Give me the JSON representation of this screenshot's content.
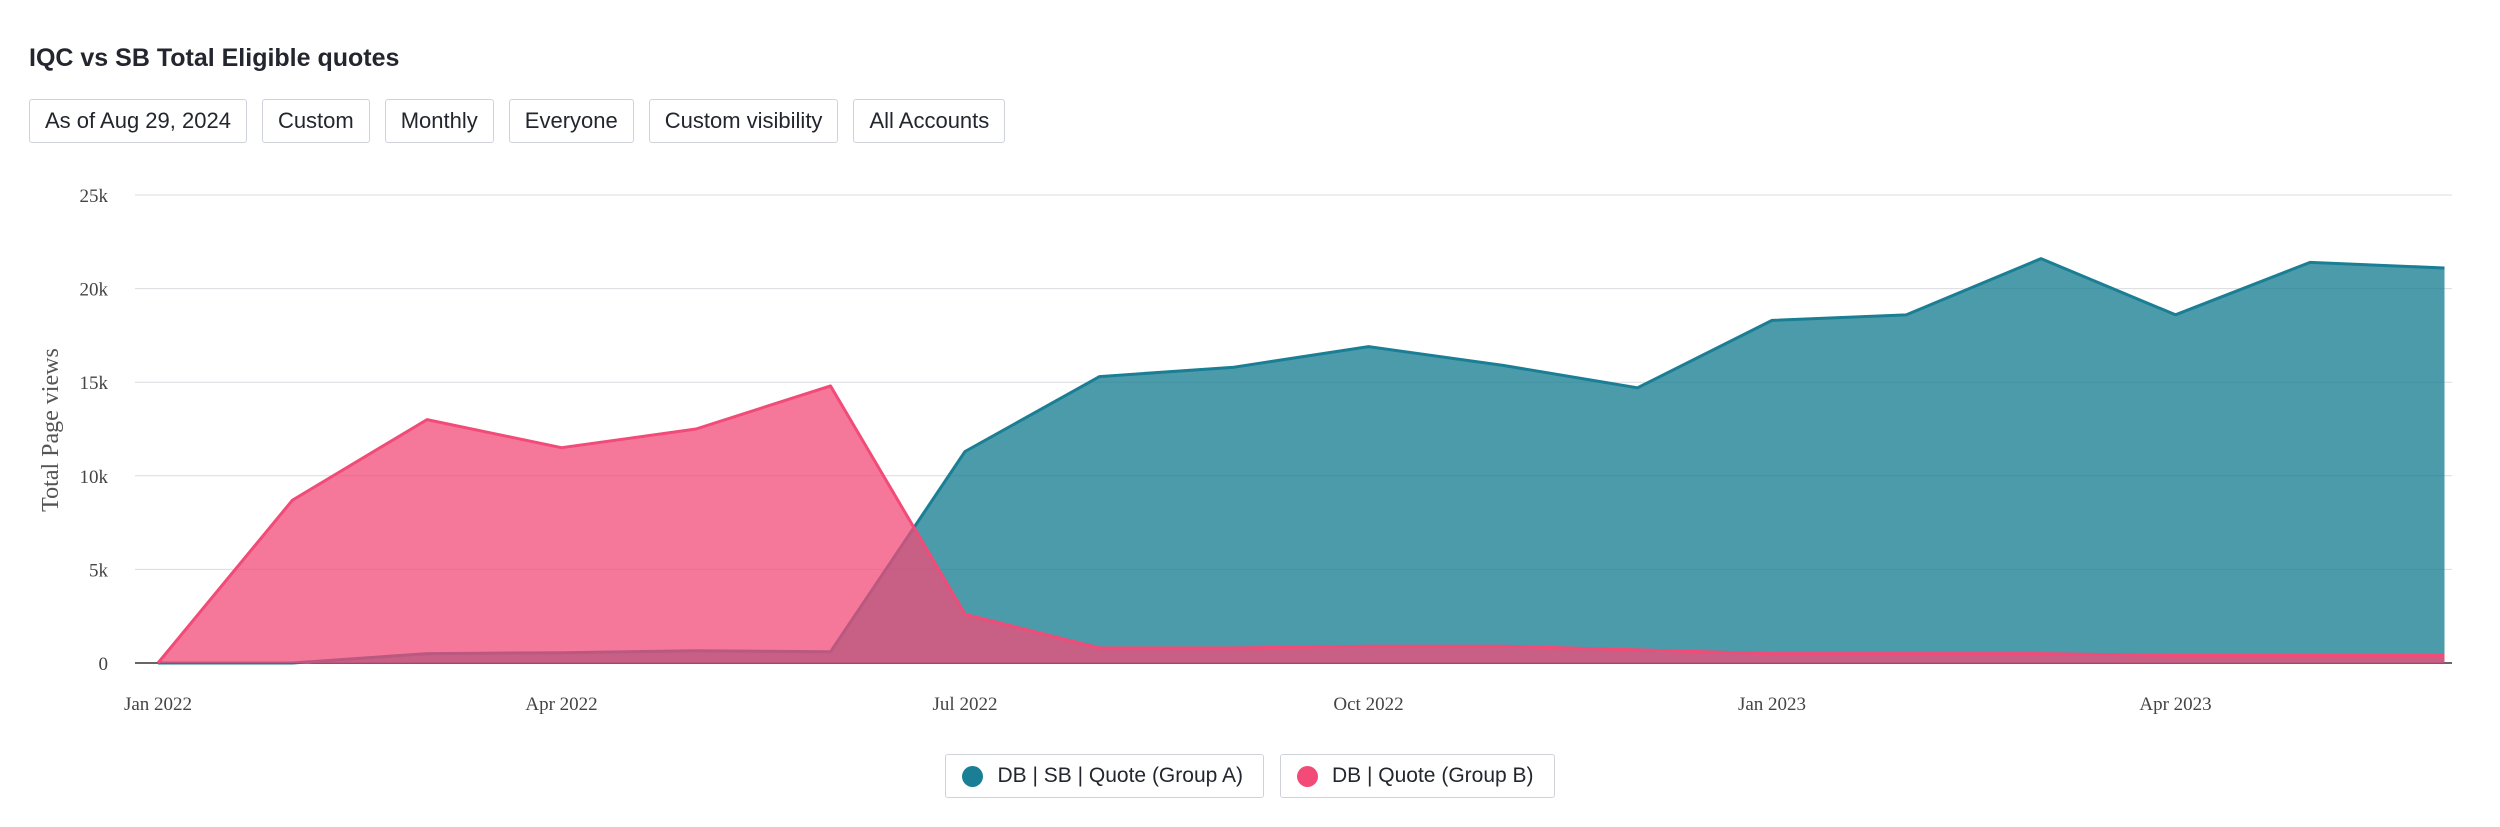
{
  "header": {
    "title": "IQC vs SB Total Eligible quotes"
  },
  "filters": [
    {
      "label": "As of Aug 29, 2024"
    },
    {
      "label": "Custom"
    },
    {
      "label": "Monthly"
    },
    {
      "label": "Everyone"
    },
    {
      "label": "Custom visibility"
    },
    {
      "label": "All Accounts"
    }
  ],
  "chart_data": {
    "type": "area",
    "title": "",
    "xlabel": "",
    "ylabel": "Total Page views",
    "x": [
      "2022-01",
      "2022-02",
      "2022-03",
      "2022-04",
      "2022-05",
      "2022-06",
      "2022-07",
      "2022-08",
      "2022-09",
      "2022-10",
      "2022-11",
      "2022-12",
      "2023-01",
      "2023-02",
      "2023-03",
      "2023-04",
      "2023-05",
      "2023-06"
    ],
    "x_tick_labels": [
      "Jan 2022",
      "Apr 2022",
      "Jul 2022",
      "Oct 2022",
      "Jan 2023",
      "Apr 2023"
    ],
    "y_tick_labels": [
      "0",
      "5k",
      "10k",
      "15k",
      "20k",
      "25k"
    ],
    "ylim": [
      0,
      25000
    ],
    "grid": true,
    "legend_position": "bottom-center",
    "series": [
      {
        "name": "DB | SB | Quote (Group A)",
        "color": "#1a7f94",
        "values": [
          0,
          0,
          500,
          550,
          650,
          600,
          11300,
          15300,
          15800,
          16900,
          15900,
          14700,
          18300,
          18600,
          21600,
          18600,
          21400,
          21100
        ]
      },
      {
        "name": "DB | Quote (Group B)",
        "color": "#f24b78",
        "values": [
          0,
          8700,
          13000,
          11500,
          12500,
          14800,
          2600,
          800,
          800,
          900,
          900,
          700,
          500,
          500,
          500,
          400,
          400,
          400
        ]
      }
    ]
  }
}
